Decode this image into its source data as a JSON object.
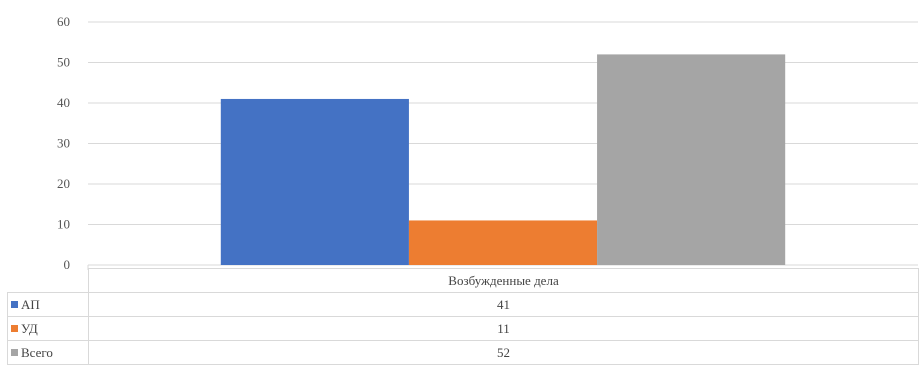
{
  "chart_data": {
    "type": "bar",
    "categories": [
      "Возбужденные дела"
    ],
    "series": [
      {
        "name": "АП",
        "values": [
          41
        ],
        "color": "#4472c4"
      },
      {
        "name": "УД",
        "values": [
          11
        ],
        "color": "#ed7d31"
      },
      {
        "name": "Всего",
        "values": [
          52
        ],
        "color": "#a5a5a5"
      }
    ],
    "ylim": [
      0,
      60
    ],
    "yticks": [
      0,
      10,
      20,
      30,
      40,
      50,
      60
    ],
    "grid": true,
    "legend": "data-table-below"
  },
  "table": {
    "header": "Возбужденные дела",
    "rows": [
      {
        "label": "АП",
        "value": "41",
        "color": "#4472c4"
      },
      {
        "label": "УД",
        "value": "11",
        "color": "#ed7d31"
      },
      {
        "label": "Всего",
        "value": "52",
        "color": "#a5a5a5"
      }
    ]
  }
}
